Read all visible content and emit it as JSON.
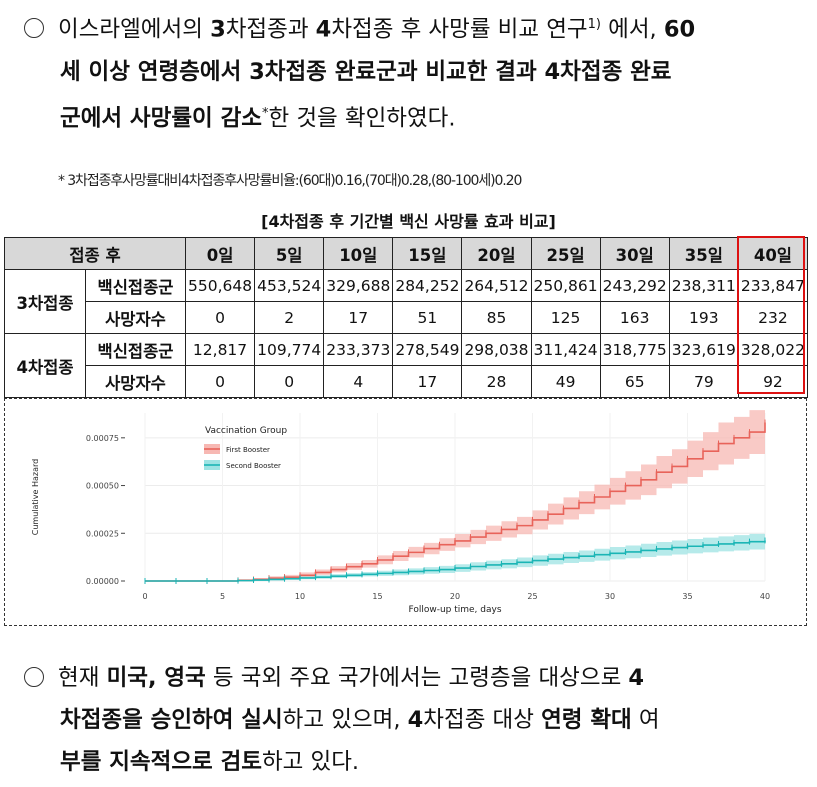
{
  "para1": {
    "line1": {
      "a": "이스라엘에서의 ",
      "b": "3",
      "c": "차접종과 ",
      "d": "4",
      "e": "차접종 후 사망률 비교 연구",
      "sup": "1)",
      "f": " 에서, ",
      "g": "60"
    },
    "line2": {
      "a": "세 이상 연령층에서 ",
      "b": "3",
      "c": "차접종 완료군",
      "d": "과 비교한 결과 ",
      "e": "4",
      "f": "차접종 완료"
    },
    "line3": {
      "a": "군에서 사망률이 감소",
      "sup": "*",
      "b": "한 것을 확인하였다."
    }
  },
  "note": "* 3차접종후사망률대비4차접종후사망률비율:(60대)0.16,(70대)0.28,(80-100세)0.20",
  "table": {
    "caption": "[4차접종 후 기간별 백신 사망률 효과 비교]",
    "header_label": "접종 후",
    "days": [
      "0일",
      "5일",
      "10일",
      "15일",
      "20일",
      "25일",
      "30일",
      "35일",
      "40일"
    ],
    "groups": [
      {
        "name": "3차접종",
        "rows": [
          {
            "label": "백신접종군",
            "values": [
              "550,648",
              "453,524",
              "329,688",
              "284,252",
              "264,512",
              "250,861",
              "243,292",
              "238,311",
              "233,847"
            ]
          },
          {
            "label": "사망자수",
            "values": [
              "0",
              "2",
              "17",
              "51",
              "85",
              "125",
              "163",
              "193",
              "232"
            ]
          }
        ]
      },
      {
        "name": "4차접종",
        "rows": [
          {
            "label": "백신접종군",
            "values": [
              "12,817",
              "109,774",
              "233,373",
              "278,549",
              "298,038",
              "311,424",
              "318,775",
              "323,619",
              "328,022"
            ]
          },
          {
            "label": "사망자수",
            "values": [
              "0",
              "0",
              "4",
              "17",
              "28",
              "49",
              "65",
              "79",
              "92"
            ]
          }
        ]
      }
    ]
  },
  "chart_data": {
    "type": "line",
    "xlabel": "Follow-up time, days",
    "ylabel": "Cumulative Hazard",
    "xlim": [
      0,
      40
    ],
    "ylim": [
      0,
      0.00088
    ],
    "xticks": [
      0,
      5,
      10,
      15,
      20,
      25,
      30,
      35,
      40
    ],
    "yticks": [
      "0.00000",
      "0.00025",
      "0.00050",
      "0.00075"
    ],
    "ytick_values": [
      0,
      0.00025,
      0.0005,
      0.00075
    ],
    "legend_title": "Vaccination Group",
    "legend_position": "top-left",
    "series": [
      {
        "name": "First Booster",
        "color": "#e8635a",
        "band": "#f7b8b3",
        "x": [
          0,
          2,
          4,
          6,
          7,
          8,
          9,
          10,
          11,
          12,
          13,
          14,
          15,
          16,
          17,
          18,
          19,
          20,
          21,
          22,
          23,
          24,
          25,
          26,
          27,
          28,
          29,
          30,
          31,
          32,
          33,
          34,
          35,
          36,
          37,
          38,
          39,
          40
        ],
        "y": [
          0,
          0,
          0,
          3e-06,
          8e-06,
          1.5e-05,
          2e-05,
          3e-05,
          4.5e-05,
          6e-05,
          7.5e-05,
          9e-05,
          0.00011,
          0.00013,
          0.00015,
          0.00017,
          0.00019,
          0.00021,
          0.00023,
          0.00025,
          0.00027,
          0.00029,
          0.00032,
          0.00035,
          0.00038,
          0.00041,
          0.00044,
          0.00047,
          0.0005,
          0.00053,
          0.00057,
          0.0006,
          0.00064,
          0.00068,
          0.00072,
          0.00075,
          0.00078,
          0.00083
        ],
        "lo": [
          0,
          0,
          0,
          0,
          3e-06,
          8e-06,
          1.2e-05,
          2e-05,
          3.2e-05,
          4.5e-05,
          5.8e-05,
          7e-05,
          8.8e-05,
          0.000105,
          0.000123,
          0.00014,
          0.000158,
          0.000176,
          0.000193,
          0.00021,
          0.000228,
          0.000245,
          0.00027,
          0.000296,
          0.000322,
          0.00035,
          0.000375,
          0.0004,
          0.000426,
          0.00045,
          0.000486,
          0.00051,
          0.000545,
          0.00058,
          0.00061,
          0.00064,
          0.000665,
          0.00071
        ],
        "hi": [
          0,
          0,
          0,
          1e-05,
          1.6e-05,
          2.5e-05,
          3.2e-05,
          4.5e-05,
          6e-05,
          7.8e-05,
          9.4e-05,
          0.00011,
          0.000134,
          0.000157,
          0.000179,
          0.0002,
          0.000224,
          0.000246,
          0.000268,
          0.00029,
          0.000313,
          0.000336,
          0.00037,
          0.000405,
          0.000438,
          0.00047,
          0.000505,
          0.00054,
          0.000575,
          0.00061,
          0.000655,
          0.00069,
          0.000735,
          0.00078,
          0.00083,
          0.00086,
          0.000895,
          0.00094
        ]
      },
      {
        "name": "Second Booster",
        "color": "#1bb5b5",
        "band": "#9ee3e3",
        "x": [
          0,
          2,
          4,
          6,
          7,
          8,
          9,
          10,
          11,
          12,
          13,
          14,
          15,
          16,
          17,
          18,
          19,
          20,
          21,
          22,
          23,
          24,
          25,
          26,
          27,
          28,
          29,
          30,
          31,
          32,
          33,
          34,
          35,
          36,
          37,
          38,
          39,
          40
        ],
        "y": [
          0,
          0,
          0,
          2e-06,
          5e-06,
          8e-06,
          1.2e-05,
          1.6e-05,
          2e-05,
          2.5e-05,
          3e-05,
          3.5e-05,
          4e-05,
          4.5e-05,
          5e-05,
          5.5e-05,
          6e-05,
          6.8e-05,
          7.6e-05,
          8.4e-05,
          9e-05,
          9.8e-05,
          0.000107,
          0.000115,
          0.000123,
          0.00013,
          0.000138,
          0.000145,
          0.000152,
          0.00016,
          0.000168,
          0.000175,
          0.000182,
          0.000188,
          0.000194,
          0.0002,
          0.000206,
          0.000212
        ],
        "lo": [
          0,
          0,
          0,
          0,
          1e-06,
          3e-06,
          6e-06,
          9e-06,
          1.2e-05,
          1.6e-05,
          2e-05,
          2.4e-05,
          2.7e-05,
          3e-05,
          3.4e-05,
          3.8e-05,
          4.2e-05,
          4.8e-05,
          5.5e-05,
          6.1e-05,
          6.6e-05,
          7.3e-05,
          8e-05,
          8.7e-05,
          9.4e-05,
          0.0001,
          0.000107,
          0.000113,
          0.000119,
          0.000126,
          0.000133,
          0.000139,
          0.000145,
          0.00015,
          0.000155,
          0.00016,
          0.000165,
          0.00017
        ],
        "hi": [
          0,
          0,
          0,
          5e-06,
          1e-05,
          1.4e-05,
          1.8e-05,
          2.4e-05,
          3e-05,
          3.6e-05,
          4.1e-05,
          4.7e-05,
          5.4e-05,
          6e-05,
          6.6e-05,
          7.3e-05,
          7.9e-05,
          8.8e-05,
          9.8e-05,
          0.000107,
          0.000114,
          0.000123,
          0.000134,
          0.000143,
          0.000152,
          0.00016,
          0.000169,
          0.000178,
          0.000186,
          0.000195,
          0.000204,
          0.000212,
          0.00022,
          0.000227,
          0.000234,
          0.00024,
          0.000247,
          0.000254
        ]
      }
    ]
  },
  "para2": {
    "line1": {
      "a": "현재 ",
      "b": "미국, 영국",
      "c": " 등 국외 주요 국가에서는 고령층을 대상으로 ",
      "d": "4"
    },
    "line2": {
      "a": "차접종을 승인하여 실시",
      "b": "하고 있으며, ",
      "c": "4",
      "d": "차접종 대상 ",
      "e": "연령 확대",
      "f": " 여"
    },
    "line3": {
      "a": "부를 지속적으로 검토",
      "b": "하고 있다."
    }
  }
}
